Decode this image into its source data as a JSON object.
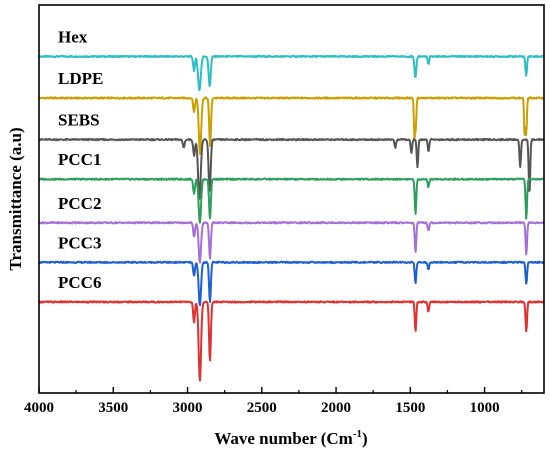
{
  "chart_data": {
    "type": "line",
    "title": "",
    "xlabel": "Wave number (Cm",
    "xlabel_superscript": "-1",
    "xlabel_suffix": ")",
    "ylabel": "Transmittance (a.u)",
    "xlim": [
      4000,
      600
    ],
    "x_reversed": true,
    "xticks": [
      4000,
      3500,
      3000,
      2500,
      2000,
      1500,
      1000
    ],
    "xtick_labels": [
      "4000",
      "3500",
      "3000",
      "2500",
      "2000",
      "1500",
      "1000"
    ],
    "y_ticks_shown": false,
    "grid": false,
    "legend": "none (labels placed above each trace)",
    "series": [
      {
        "name": "Hex",
        "color": "#2bbfc6",
        "baseline": 7.5,
        "peaks": [
          {
            "x": 2956,
            "depth": 0.35,
            "width": 6
          },
          {
            "x": 2920,
            "depth": 0.85,
            "width": 9
          },
          {
            "x": 2851,
            "depth": 0.75,
            "width": 7
          },
          {
            "x": 1466,
            "depth": 0.55,
            "width": 6
          },
          {
            "x": 1378,
            "depth": 0.2,
            "width": 5
          },
          {
            "x": 720,
            "depth": 0.5,
            "width": 5
          }
        ]
      },
      {
        "name": "LDPE",
        "color": "#c9a000",
        "baseline": 6.45,
        "peaks": [
          {
            "x": 2956,
            "depth": 0.35,
            "width": 6
          },
          {
            "x": 2916,
            "depth": 1.4,
            "width": 8
          },
          {
            "x": 2848,
            "depth": 1.2,
            "width": 6
          },
          {
            "x": 1472,
            "depth": 1.0,
            "width": 4
          },
          {
            "x": 1463,
            "depth": 0.7,
            "width": 4
          },
          {
            "x": 730,
            "depth": 1.0,
            "width": 4
          },
          {
            "x": 719,
            "depth": 0.9,
            "width": 4
          }
        ]
      },
      {
        "name": "SEBS",
        "color": "#555555",
        "baseline": 5.4,
        "peaks": [
          {
            "x": 3026,
            "depth": 0.2,
            "width": 6
          },
          {
            "x": 2956,
            "depth": 0.4,
            "width": 6
          },
          {
            "x": 2920,
            "depth": 1.5,
            "width": 9
          },
          {
            "x": 2851,
            "depth": 1.3,
            "width": 7
          },
          {
            "x": 1601,
            "depth": 0.2,
            "width": 5
          },
          {
            "x": 1493,
            "depth": 0.35,
            "width": 5
          },
          {
            "x": 1452,
            "depth": 0.7,
            "width": 5
          },
          {
            "x": 1378,
            "depth": 0.3,
            "width": 5
          },
          {
            "x": 760,
            "depth": 0.7,
            "width": 5
          },
          {
            "x": 698,
            "depth": 1.4,
            "width": 5
          }
        ]
      },
      {
        "name": "PCC1",
        "color": "#2e9e5a",
        "baseline": 4.4,
        "peaks": [
          {
            "x": 2956,
            "depth": 0.35,
            "width": 6
          },
          {
            "x": 2917,
            "depth": 1.1,
            "width": 8
          },
          {
            "x": 2849,
            "depth": 1.0,
            "width": 6
          },
          {
            "x": 1465,
            "depth": 0.9,
            "width": 5
          },
          {
            "x": 1378,
            "depth": 0.2,
            "width": 5
          },
          {
            "x": 719,
            "depth": 1.0,
            "width": 5
          }
        ]
      },
      {
        "name": "PCC2",
        "color": "#a66fd6",
        "baseline": 3.3,
        "peaks": [
          {
            "x": 2956,
            "depth": 0.35,
            "width": 6
          },
          {
            "x": 2917,
            "depth": 1.0,
            "width": 8
          },
          {
            "x": 2849,
            "depth": 0.9,
            "width": 6
          },
          {
            "x": 1465,
            "depth": 0.75,
            "width": 5
          },
          {
            "x": 1378,
            "depth": 0.2,
            "width": 5
          },
          {
            "x": 719,
            "depth": 0.8,
            "width": 5
          }
        ]
      },
      {
        "name": "PCC3",
        "color": "#1f5fd1",
        "baseline": 2.3,
        "peaks": [
          {
            "x": 2956,
            "depth": 0.35,
            "width": 6
          },
          {
            "x": 2917,
            "depth": 1.1,
            "width": 8
          },
          {
            "x": 2849,
            "depth": 1.0,
            "width": 6
          },
          {
            "x": 1465,
            "depth": 0.55,
            "width": 5
          },
          {
            "x": 1378,
            "depth": 0.2,
            "width": 5
          },
          {
            "x": 719,
            "depth": 0.55,
            "width": 5
          }
        ]
      },
      {
        "name": "PCC6",
        "color": "#e03030",
        "baseline": 1.3,
        "peaks": [
          {
            "x": 2956,
            "depth": 0.5,
            "width": 6
          },
          {
            "x": 2917,
            "depth": 2.0,
            "width": 8
          },
          {
            "x": 2849,
            "depth": 1.5,
            "width": 6
          },
          {
            "x": 1465,
            "depth": 0.75,
            "width": 5
          },
          {
            "x": 1378,
            "depth": 0.25,
            "width": 5
          },
          {
            "x": 719,
            "depth": 0.75,
            "width": 5
          }
        ]
      }
    ],
    "ylim": [
      -1.0,
      8.8
    ]
  }
}
